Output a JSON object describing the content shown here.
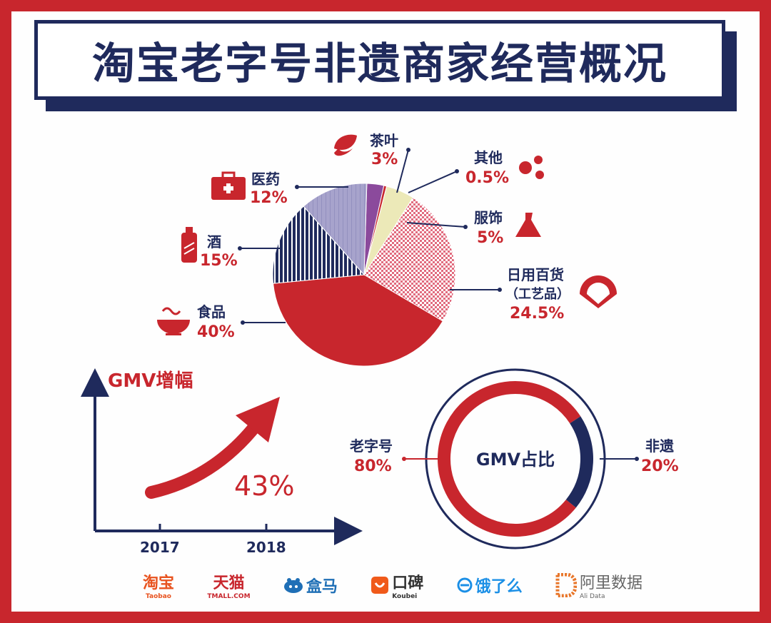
{
  "title": "淘宝老字号非遗商家经营概况",
  "colors": {
    "red": "#c8262d",
    "navy": "#1f2a5c",
    "lavender": "#a7a3cc",
    "purple": "#8b4a9c",
    "cream": "#ece9b8",
    "pink_pattern": "#e58b98"
  },
  "chart_data": [
    {
      "type": "pie",
      "slices": [
        {
          "label": "茶叶",
          "value": 3,
          "value_label": "3%",
          "color": "#8b4a9c",
          "icon": "tea-leaf-icon"
        },
        {
          "label": "其他",
          "value": 0.5,
          "value_label": "0.5%",
          "color": "#c8262d",
          "icon": "dots-icon"
        },
        {
          "label": "服饰",
          "value": 5,
          "value_label": "5%",
          "color": "#ece9b8",
          "icon": "dress-icon"
        },
        {
          "label": "日用百货",
          "sublabel": "（工艺品）",
          "value": 24.5,
          "value_label": "24.5%",
          "color": "#e58b98",
          "icon": "fan-icon"
        },
        {
          "label": "食品",
          "value": 40,
          "value_label": "40%",
          "color": "#c8262d",
          "icon": "bowl-icon"
        },
        {
          "label": "酒",
          "value": 15,
          "value_label": "15%",
          "color": "#1f2a5c",
          "icon": "bottle-icon"
        },
        {
          "label": "医药",
          "value": 12,
          "value_label": "12%",
          "color": "#a7a3cc",
          "icon": "medkit-icon"
        }
      ]
    },
    {
      "type": "line",
      "title": "GMV增幅",
      "categories": [
        "2017",
        "2018"
      ],
      "annotation": "43%"
    },
    {
      "type": "pie",
      "center_label": "GMV占比",
      "slices": [
        {
          "label": "老字号",
          "value": 80,
          "value_label": "80%",
          "color": "#c8262d"
        },
        {
          "label": "非遗",
          "value": 20,
          "value_label": "20%",
          "color": "#1f2a5c"
        }
      ]
    }
  ],
  "footer": {
    "logos": [
      {
        "name": "淘宝",
        "sub": "Taobao"
      },
      {
        "name": "天猫",
        "sub": "TMALL.COM"
      },
      {
        "name": "盒马",
        "sub": ""
      },
      {
        "name": "口碑",
        "sub": "Koubei"
      },
      {
        "name": "饿了么",
        "sub": ""
      },
      {
        "name": "阿里数据",
        "sub": "Ali Data"
      }
    ]
  }
}
